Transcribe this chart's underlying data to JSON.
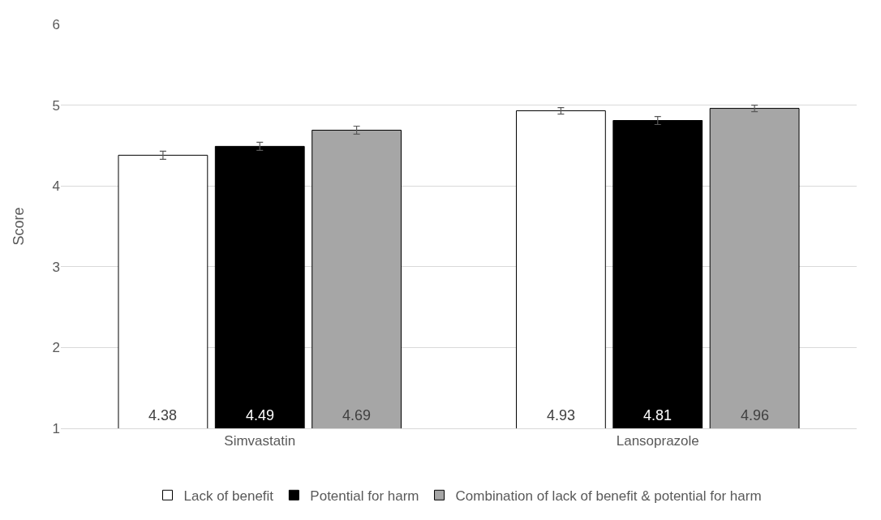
{
  "chart_data": {
    "type": "bar",
    "ylabel": "Score",
    "categories": [
      "Simvastatin",
      "Lansoprazole"
    ],
    "series": [
      {
        "name": "Lack of benefit",
        "color": "#ffffff",
        "values": [
          4.38,
          4.93
        ],
        "errors": [
          0.05,
          0.04
        ]
      },
      {
        "name": "Potential for harm",
        "color": "#000000",
        "values": [
          4.49,
          4.81
        ],
        "errors": [
          0.05,
          0.05
        ]
      },
      {
        "name": "Combination of lack of benefit & potential for harm",
        "color": "#a6a6a6",
        "values": [
          4.69,
          4.96
        ],
        "errors": [
          0.05,
          0.04
        ]
      }
    ],
    "ylim": [
      1,
      6
    ],
    "yticks": [
      1,
      2,
      3,
      4,
      5,
      6
    ],
    "grid": "y",
    "legend": "bottom",
    "data_labels": true
  }
}
